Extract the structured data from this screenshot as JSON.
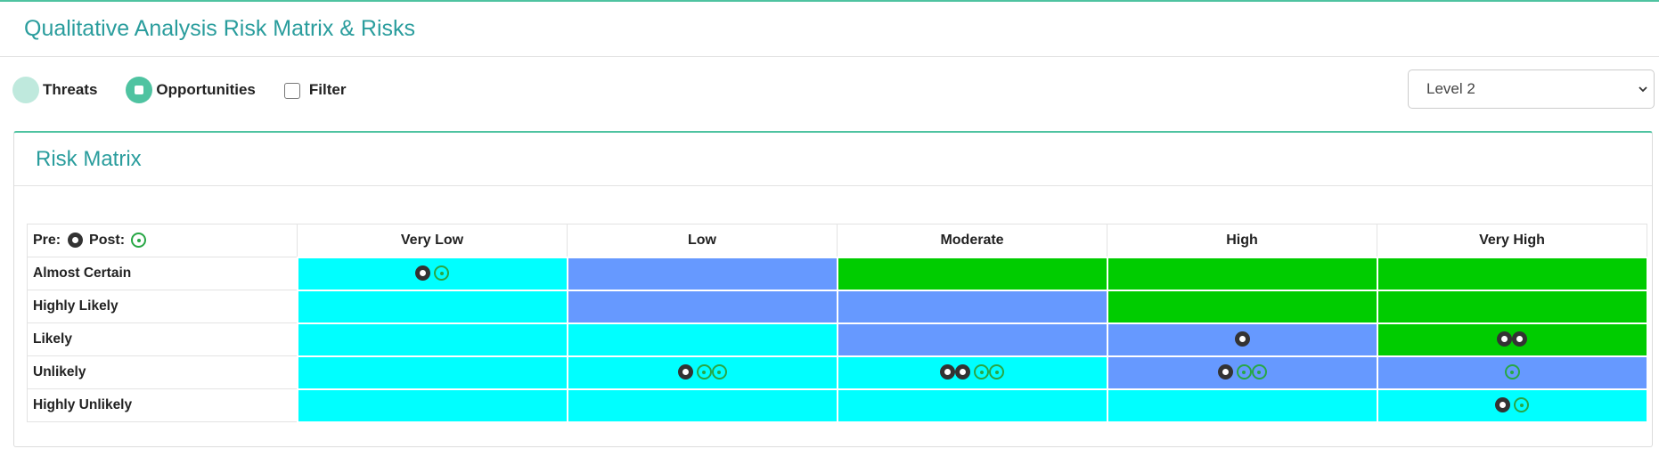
{
  "page": {
    "title": "Qualitative Analysis Risk Matrix & Risks"
  },
  "controls": {
    "threats_label": "Threats",
    "opportunities_label": "Opportunities",
    "filter_label": "Filter",
    "level_selected": "Level 2"
  },
  "card": {
    "title": "Risk Matrix"
  },
  "matrix": {
    "legend": {
      "pre_label": "Pre:",
      "post_label": "Post:"
    },
    "columns": [
      "Very Low",
      "Low",
      "Moderate",
      "High",
      "Very High"
    ],
    "rows": [
      {
        "label": "Almost Certain",
        "cells": [
          {
            "color": "#00ffff",
            "pre": 1,
            "post": 1
          },
          {
            "color": "#6699ff",
            "pre": 0,
            "post": 0
          },
          {
            "color": "#00cc00",
            "pre": 0,
            "post": 0
          },
          {
            "color": "#00cc00",
            "pre": 0,
            "post": 0
          },
          {
            "color": "#00cc00",
            "pre": 0,
            "post": 0
          }
        ]
      },
      {
        "label": "Highly Likely",
        "cells": [
          {
            "color": "#00ffff",
            "pre": 0,
            "post": 0
          },
          {
            "color": "#6699ff",
            "pre": 0,
            "post": 0
          },
          {
            "color": "#6699ff",
            "pre": 0,
            "post": 0
          },
          {
            "color": "#00cc00",
            "pre": 0,
            "post": 0
          },
          {
            "color": "#00cc00",
            "pre": 0,
            "post": 0
          }
        ]
      },
      {
        "label": "Likely",
        "cells": [
          {
            "color": "#00ffff",
            "pre": 0,
            "post": 0
          },
          {
            "color": "#00ffff",
            "pre": 0,
            "post": 0
          },
          {
            "color": "#6699ff",
            "pre": 0,
            "post": 0
          },
          {
            "color": "#6699ff",
            "pre": 1,
            "post": 0
          },
          {
            "color": "#00cc00",
            "pre": 2,
            "post": 0
          }
        ]
      },
      {
        "label": "Unlikely",
        "cells": [
          {
            "color": "#00ffff",
            "pre": 0,
            "post": 0
          },
          {
            "color": "#00ffff",
            "pre": 1,
            "post": 2
          },
          {
            "color": "#00ffff",
            "pre": 2,
            "post": 2
          },
          {
            "color": "#6699ff",
            "pre": 1,
            "post": 2
          },
          {
            "color": "#6699ff",
            "pre": 0,
            "post": 1
          }
        ]
      },
      {
        "label": "Highly Unlikely",
        "cells": [
          {
            "color": "#00ffff",
            "pre": 0,
            "post": 0
          },
          {
            "color": "#00ffff",
            "pre": 0,
            "post": 0
          },
          {
            "color": "#00ffff",
            "pre": 0,
            "post": 0
          },
          {
            "color": "#00ffff",
            "pre": 0,
            "post": 0
          },
          {
            "color": "#00ffff",
            "pre": 1,
            "post": 1
          }
        ]
      }
    ]
  }
}
